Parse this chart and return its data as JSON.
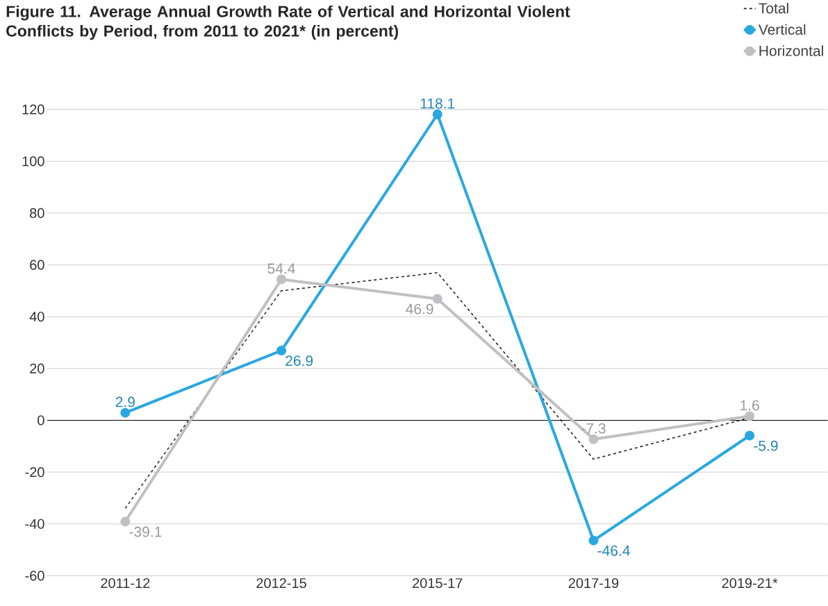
{
  "chart_data": {
    "type": "line",
    "title": "Figure 11. Average Annual Growth Rate of Vertical and Horizontal Violent Conflicts by Period, from 2011 to 2021* (in percent)",
    "categories": [
      "2011-12",
      "2012-15",
      "2015-17",
      "2017-19",
      "2019-21*"
    ],
    "series": [
      {
        "name": "Total",
        "color": "#222222",
        "values": [
          -34,
          50,
          57,
          -15,
          1
        ],
        "line_style": "dashed",
        "marker": "none"
      },
      {
        "name": "Vertical",
        "color": "#29a8df",
        "values": [
          2.9,
          26.9,
          118.1,
          -46.4,
          -5.9
        ],
        "value_labels": [
          "2.9",
          "26.9",
          "118.1",
          "-46.4",
          "-5.9"
        ],
        "line_style": "solid",
        "marker": "circle"
      },
      {
        "name": "Horizontal",
        "color": "#c0c0c4",
        "values": [
          -39.1,
          54.4,
          46.9,
          -7.3,
          1.6
        ],
        "value_labels": [
          "-39.1",
          "54.4",
          "46.9",
          "-7.3",
          "1.6"
        ],
        "line_style": "solid",
        "marker": "circle"
      }
    ],
    "ylim": [
      -60,
      120
    ],
    "yticks": [
      -60,
      -40,
      -20,
      0,
      20,
      40,
      60,
      80,
      100,
      120
    ],
    "grid": "y",
    "legend": "top right",
    "ref_lines": [
      {
        "axis": "y",
        "value": 0,
        "color": "#000000"
      }
    ]
  }
}
